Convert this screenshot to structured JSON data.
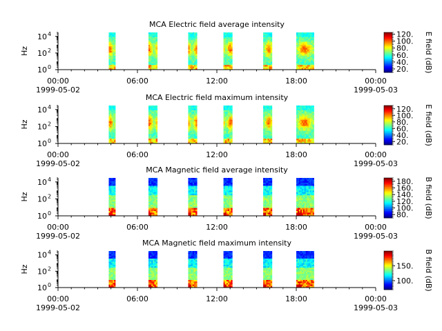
{
  "chart_data": [
    {
      "type": "heatmap",
      "title": "MCA  Electric field average intensity",
      "ylabel": "Hz",
      "yscale": "log",
      "ylim": [
        1,
        30000
      ],
      "ytick_base": "10",
      "ytick_exps": [
        "0",
        "2",
        "4"
      ],
      "xlim": [
        "1999-05-02 00:00",
        "1999-05-03 00:00"
      ],
      "xticks": [
        "00:00",
        "06:00",
        "12:00",
        "18:00",
        "00:00"
      ],
      "xtick_dates": [
        "1999-05-02",
        "1999-05-03"
      ],
      "colorbar_label": "E field (dB)",
      "colorbar_range": [
        10,
        125
      ],
      "colorbar_ticks": [
        "20.",
        "40.",
        "60.",
        "80.",
        "100.",
        "120."
      ],
      "colorbar_tick_values": [
        20,
        40,
        60,
        80,
        100,
        120
      ],
      "data_intervals": [
        [
          "03:50",
          "04:20"
        ],
        [
          "06:50",
          "07:30"
        ],
        [
          "09:50",
          "10:30"
        ],
        [
          "12:30",
          "13:10"
        ],
        [
          "15:30",
          "16:10"
        ],
        [
          "18:00",
          "19:20"
        ]
      ],
      "pattern": "electric"
    },
    {
      "type": "heatmap",
      "title": "MCA  Electric field maximum intensity",
      "ylabel": "Hz",
      "yscale": "log",
      "ylim": [
        1,
        30000
      ],
      "ytick_base": "10",
      "ytick_exps": [
        "0",
        "2",
        "4"
      ],
      "xlim": [
        "1999-05-02 00:00",
        "1999-05-03 00:00"
      ],
      "xticks": [
        "00:00",
        "06:00",
        "12:00",
        "18:00",
        "00:00"
      ],
      "xtick_dates": [
        "1999-05-02",
        "1999-05-03"
      ],
      "colorbar_label": "E field (dB)",
      "colorbar_range": [
        10,
        130
      ],
      "colorbar_ticks": [
        "20.",
        "40.",
        "60.",
        "80.",
        "100.",
        "120."
      ],
      "colorbar_tick_values": [
        20,
        40,
        60,
        80,
        100,
        120
      ],
      "data_intervals": [
        [
          "03:50",
          "04:20"
        ],
        [
          "06:50",
          "07:30"
        ],
        [
          "09:50",
          "10:30"
        ],
        [
          "12:30",
          "13:10"
        ],
        [
          "15:30",
          "16:10"
        ],
        [
          "18:00",
          "19:20"
        ]
      ],
      "pattern": "electric"
    },
    {
      "type": "heatmap",
      "title": "MCA  Magnetic field average intensity",
      "ylabel": "Hz",
      "yscale": "log",
      "ylim": [
        1,
        30000
      ],
      "ytick_base": "10",
      "ytick_exps": [
        "0",
        "2",
        "4"
      ],
      "xlim": [
        "1999-05-02 00:00",
        "1999-05-03 00:00"
      ],
      "xticks": [
        "00:00",
        "06:00",
        "12:00",
        "18:00",
        "00:00"
      ],
      "xtick_dates": [
        "1999-05-02",
        "1999-05-03"
      ],
      "colorbar_label": "B field (dB)",
      "colorbar_range": [
        70,
        190
      ],
      "colorbar_ticks": [
        "80.",
        "100.",
        "120.",
        "140.",
        "160.",
        "180."
      ],
      "colorbar_tick_values": [
        80,
        100,
        120,
        140,
        160,
        180
      ],
      "data_intervals": [
        [
          "03:50",
          "04:20"
        ],
        [
          "06:50",
          "07:30"
        ],
        [
          "09:50",
          "10:30"
        ],
        [
          "12:30",
          "13:10"
        ],
        [
          "15:30",
          "16:10"
        ],
        [
          "18:00",
          "19:20"
        ]
      ],
      "pattern": "magnetic"
    },
    {
      "type": "heatmap",
      "title": "MCA  Magnetic field maximum intensity",
      "ylabel": "Hz",
      "yscale": "log",
      "ylim": [
        1,
        30000
      ],
      "ytick_base": "10",
      "ytick_exps": [
        "0",
        "2",
        "4"
      ],
      "xlim": [
        "1999-05-02 00:00",
        "1999-05-03 00:00"
      ],
      "xticks": [
        "00:00",
        "06:00",
        "12:00",
        "18:00",
        "00:00"
      ],
      "xtick_dates": [
        "1999-05-02",
        "1999-05-03"
      ],
      "colorbar_label": "B field (dB)",
      "colorbar_range": [
        70,
        200
      ],
      "colorbar_ticks": [
        "100.",
        "150."
      ],
      "colorbar_tick_values": [
        100,
        150
      ],
      "data_intervals": [
        [
          "03:50",
          "04:20"
        ],
        [
          "06:50",
          "07:30"
        ],
        [
          "09:50",
          "10:30"
        ],
        [
          "12:30",
          "13:10"
        ],
        [
          "15:30",
          "16:10"
        ],
        [
          "18:00",
          "19:20"
        ]
      ],
      "pattern": "magnetic"
    }
  ]
}
